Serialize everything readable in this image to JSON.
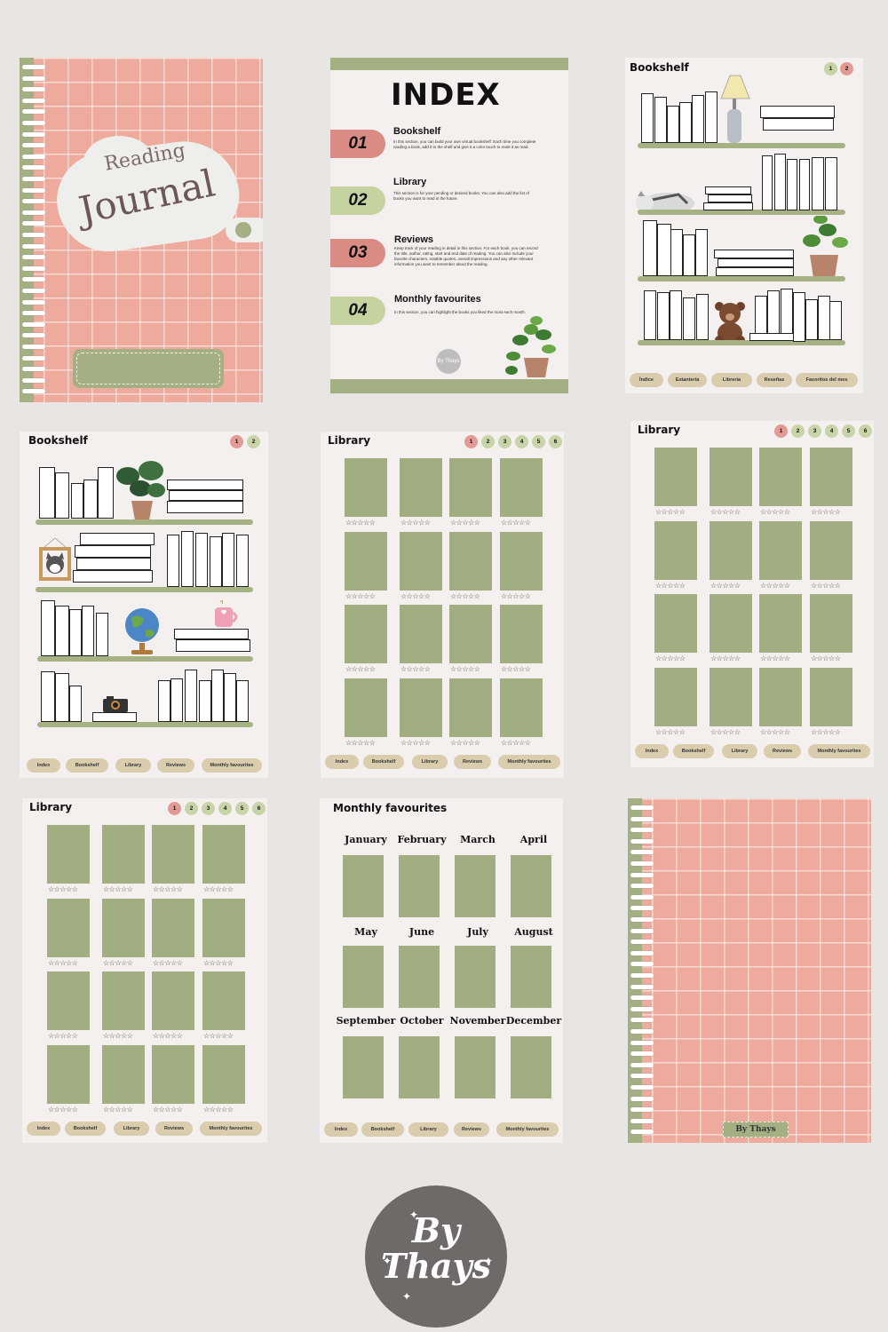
{
  "cover": {
    "title_top": "Reading",
    "title_main": "Journal"
  },
  "index": {
    "title": "INDEX",
    "sections": [
      {
        "num": "01",
        "title": "Bookshelf",
        "desc": "In this section, you can build your own virtual bookshelf. Each time you complete reading a book, add it to the shelf and give it a color touch to mark it as read."
      },
      {
        "num": "02",
        "title": "Library",
        "desc": "This section is for your pending or desired books. You can also add the list of books you want to read in the future."
      },
      {
        "num": "03",
        "title": "Reviews",
        "desc": "Keep track of your reading in detail in this section. For each book, you can record the title, author, rating, start and end date of reading. You can also include your favorite characters, notable quotes, overall impressions and any other relevant information you want to remember about the reading."
      },
      {
        "num": "04",
        "title": "Monthly favourites",
        "desc": "In this section, you can highlight the books you liked the most each month."
      }
    ],
    "badge": "By Thays"
  },
  "bookshelf_es": {
    "title": "Bookshelf",
    "pages": [
      "1",
      "2"
    ],
    "nav": [
      "Índice",
      "Estantería",
      "Librería",
      "Reseñas",
      "Favoritos del mes"
    ]
  },
  "bookshelf_en": {
    "title": "Bookshelf",
    "pages": [
      "1",
      "2"
    ],
    "nav": [
      "Index",
      "Bookshelf",
      "Library",
      "Reviews",
      "Monthly favourites"
    ]
  },
  "library": {
    "title": "Library",
    "pages": [
      "1",
      "2",
      "3",
      "4",
      "5",
      "6"
    ],
    "stars": "☆☆☆☆☆",
    "nav": [
      "Index",
      "Bookshelf",
      "Library",
      "Reviews",
      "Monthly favourites"
    ]
  },
  "monthly": {
    "title": "Monthly favourites",
    "months": [
      "January",
      "February",
      "March",
      "April",
      "May",
      "June",
      "July",
      "August",
      "September",
      "October",
      "November",
      "December"
    ],
    "nav": [
      "Index",
      "Bookshelf",
      "Library",
      "Reviews",
      "Monthly favourites"
    ]
  },
  "back_cover": {
    "label": "By Thays"
  },
  "logo": {
    "line1": "By",
    "line2": "Thays"
  },
  "colors": {
    "pink": "#eeaa9c",
    "green": "#a4b083",
    "beige": "#d9cdae",
    "paper": "#f4f0ef",
    "red_tab": "#d98b84"
  }
}
